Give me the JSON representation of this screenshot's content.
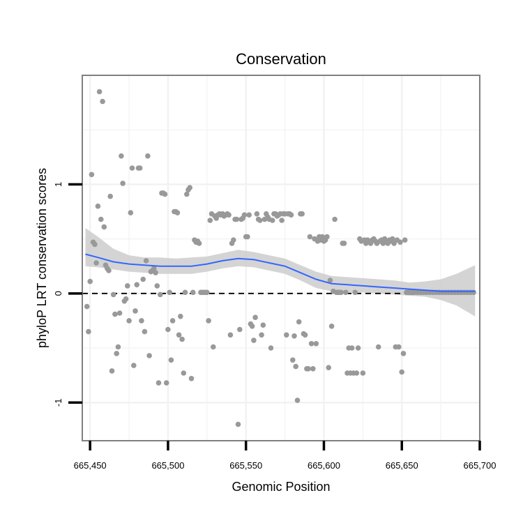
{
  "chart_data": {
    "type": "scatter",
    "title": "Conservation",
    "xlabel": "Genomic Position",
    "ylabel": "phyloP LRT conservation scores",
    "xlim": [
      665445,
      665700
    ],
    "ylim": [
      -1.35,
      2.0
    ],
    "x_ticks": [
      665450,
      665500,
      665550,
      665600,
      665650,
      665700
    ],
    "x_tick_labels": [
      "665,450",
      "665,500",
      "665,550",
      "665,600",
      "665,650",
      "665,700"
    ],
    "y_ticks": [
      -1,
      0,
      1
    ],
    "y_tick_labels": [
      "-1",
      "0",
      "1"
    ],
    "grid": true,
    "reference_line": {
      "y": 0,
      "style": "dashed"
    },
    "colors": {
      "points": "#999999",
      "smooth_line": "#3366ff",
      "ribbon": "#cccccc",
      "panel_border": "#808080",
      "grid": "#f2f2f2",
      "ref_line": "#000000"
    },
    "points": [
      [
        665448,
        -0.12
      ],
      [
        665449,
        -0.35
      ],
      [
        665450,
        0.11
      ],
      [
        665451,
        1.09
      ],
      [
        665452,
        0.47
      ],
      [
        665453,
        0.45
      ],
      [
        665454,
        0.28
      ],
      [
        665455,
        0.8
      ],
      [
        665456,
        1.85
      ],
      [
        665457,
        0.68
      ],
      [
        665458,
        1.76
      ],
      [
        665459,
        0.61
      ],
      [
        665460,
        0.26
      ],
      [
        665461,
        0.23
      ],
      [
        665462,
        0.21
      ],
      [
        665463,
        0.89
      ],
      [
        665464,
        -0.71
      ],
      [
        665465,
        -0.01
      ],
      [
        665466,
        -0.19
      ],
      [
        665467,
        -0.55
      ],
      [
        665468,
        -0.49
      ],
      [
        665469,
        -0.18
      ],
      [
        665470,
        1.26
      ],
      [
        665471,
        1.01
      ],
      [
        665472,
        -0.07
      ],
      [
        665473,
        -0.05
      ],
      [
        665474,
        0.07
      ],
      [
        665475,
        -0.25
      ],
      [
        665476,
        0.74
      ],
      [
        665477,
        1.15
      ],
      [
        665478,
        -0.66
      ],
      [
        665479,
        -0.16
      ],
      [
        665480,
        0.08
      ],
      [
        665481,
        1.15
      ],
      [
        665482,
        1.15
      ],
      [
        665483,
        -0.25
      ],
      [
        665484,
        0.13
      ],
      [
        665485,
        -0.35
      ],
      [
        665486,
        0.3
      ],
      [
        665487,
        1.26
      ],
      [
        665488,
        -0.57
      ],
      [
        665489,
        0.2
      ],
      [
        665490,
        0.21
      ],
      [
        665491,
        0.23
      ],
      [
        665492,
        0.19
      ],
      [
        665493,
        0.07
      ],
      [
        665494,
        -0.82
      ],
      [
        665495,
        -0.01
      ],
      [
        665496,
        0.92
      ],
      [
        665497,
        0.92
      ],
      [
        665498,
        0.91
      ],
      [
        665499,
        -0.82
      ],
      [
        665500,
        -0.33
      ],
      [
        665501,
        0.01
      ],
      [
        665502,
        -0.61
      ],
      [
        665503,
        -0.25
      ],
      [
        665504,
        0.75
      ],
      [
        665505,
        0.75
      ],
      [
        665506,
        0.74
      ],
      [
        665507,
        -0.38
      ],
      [
        665508,
        -0.21
      ],
      [
        665509,
        -0.42
      ],
      [
        665510,
        -0.73
      ],
      [
        665511,
        0.01
      ],
      [
        665512,
        0.91
      ],
      [
        665513,
        0.95
      ],
      [
        665514,
        0.97
      ],
      [
        665515,
        -0.78
      ],
      [
        665516,
        0.01
      ],
      [
        665517,
        0.49
      ],
      [
        665518,
        0.47
      ],
      [
        665519,
        0.48
      ],
      [
        665520,
        0.46
      ],
      [
        665521,
        0.01
      ],
      [
        665522,
        0.01
      ],
      [
        665523,
        0.01
      ],
      [
        665524,
        0.01
      ],
      [
        665525,
        0.01
      ],
      [
        665526,
        -0.25
      ],
      [
        665527,
        0.67
      ],
      [
        665528,
        0.73
      ],
      [
        665529,
        -0.49
      ],
      [
        665530,
        0.71
      ],
      [
        665531,
        0.69
      ],
      [
        665532,
        0.72
      ],
      [
        665533,
        0.73
      ],
      [
        665534,
        0.72
      ],
      [
        665535,
        0.73
      ],
      [
        665536,
        0.71
      ],
      [
        665537,
        0.72
      ],
      [
        665538,
        0.73
      ],
      [
        665539,
        0.72
      ],
      [
        665540,
        -0.38
      ],
      [
        665541,
        0.46
      ],
      [
        665542,
        0.49
      ],
      [
        665543,
        0.68
      ],
      [
        665544,
        0.68
      ],
      [
        665545,
        -1.2
      ],
      [
        665546,
        -0.33
      ],
      [
        665547,
        0.68
      ],
      [
        665548,
        0.69
      ],
      [
        665549,
        0.72
      ],
      [
        665550,
        0.52
      ],
      [
        665551,
        0.52
      ],
      [
        665552,
        0.72
      ],
      [
        665553,
        -0.28
      ],
      [
        665554,
        -0.3
      ],
      [
        665555,
        -0.43
      ],
      [
        665556,
        -0.22
      ],
      [
        665557,
        0.73
      ],
      [
        665558,
        0.68
      ],
      [
        665559,
        0.67
      ],
      [
        665560,
        -0.38
      ],
      [
        665561,
        -0.29
      ],
      [
        665562,
        0.68
      ],
      [
        665563,
        0.73
      ],
      [
        665564,
        0.7
      ],
      [
        665565,
        0.68
      ],
      [
        665566,
        -0.5
      ],
      [
        665567,
        0.67
      ],
      [
        665568,
        0.73
      ],
      [
        665569,
        0.73
      ],
      [
        665570,
        0.71
      ],
      [
        665571,
        0.72
      ],
      [
        665572,
        0.73
      ],
      [
        665573,
        0.67
      ],
      [
        665574,
        0.73
      ],
      [
        665575,
        0.73
      ],
      [
        665576,
        -0.38
      ],
      [
        665577,
        0.73
      ],
      [
        665578,
        0.73
      ],
      [
        665579,
        0.72
      ],
      [
        665580,
        -0.61
      ],
      [
        665581,
        -0.39
      ],
      [
        665582,
        -0.67
      ],
      [
        665583,
        -0.98
      ],
      [
        665584,
        -0.26
      ],
      [
        665585,
        0.73
      ],
      [
        665586,
        0.73
      ],
      [
        665587,
        -0.37
      ],
      [
        665588,
        -0.38
      ],
      [
        665589,
        -0.69
      ],
      [
        665590,
        -0.69
      ],
      [
        665591,
        0.52
      ],
      [
        665592,
        -0.46
      ],
      [
        665593,
        -0.69
      ],
      [
        665594,
        0.5
      ],
      [
        665595,
        -0.46
      ],
      [
        665596,
        0.48
      ],
      [
        665597,
        0.52
      ],
      [
        665598,
        0.49
      ],
      [
        665599,
        0.52
      ],
      [
        665600,
        0.48
      ],
      [
        665601,
        0.49
      ],
      [
        665602,
        0.52
      ],
      [
        665603,
        -0.68
      ],
      [
        665604,
        0.12
      ],
      [
        665605,
        -0.3
      ],
      [
        665606,
        0.02
      ],
      [
        665607,
        0.68
      ],
      [
        665608,
        0.01
      ],
      [
        665609,
        0.01
      ],
      [
        665610,
        0.01
      ],
      [
        665611,
        0.01
      ],
      [
        665612,
        0.46
      ],
      [
        665613,
        0.46
      ],
      [
        665614,
        0.01
      ],
      [
        665615,
        -0.73
      ],
      [
        665616,
        -0.5
      ],
      [
        665617,
        -0.73
      ],
      [
        665618,
        -0.5
      ],
      [
        665619,
        -0.73
      ],
      [
        665620,
        0.01
      ],
      [
        665621,
        -0.73
      ],
      [
        665622,
        -0.5
      ],
      [
        665623,
        0.5
      ],
      [
        665624,
        0.48
      ],
      [
        665625,
        -0.73
      ],
      [
        665626,
        0.49
      ],
      [
        665627,
        0.46
      ],
      [
        665628,
        0.49
      ],
      [
        665629,
        0.48
      ],
      [
        665630,
        0.46
      ],
      [
        665631,
        0.49
      ],
      [
        665632,
        0.5
      ],
      [
        665633,
        0.48
      ],
      [
        665634,
        0.46
      ],
      [
        665635,
        -0.49
      ],
      [
        665636,
        0.48
      ],
      [
        665637,
        0.49
      ],
      [
        665638,
        0.46
      ],
      [
        665639,
        0.5
      ],
      [
        665640,
        0.48
      ],
      [
        665641,
        0.46
      ],
      [
        665642,
        0.49
      ],
      [
        665643,
        0.48
      ],
      [
        665644,
        0.5
      ],
      [
        665645,
        0.46
      ],
      [
        665646,
        -0.49
      ],
      [
        665647,
        0.49
      ],
      [
        665648,
        -0.49
      ],
      [
        665649,
        0.47
      ],
      [
        665650,
        -0.72
      ],
      [
        665651,
        -0.55
      ],
      [
        665652,
        0.49
      ],
      [
        665653,
        0.01
      ],
      [
        665654,
        0.01
      ],
      [
        665655,
        0.01
      ],
      [
        665656,
        0.01
      ],
      [
        665657,
        0.01
      ],
      [
        665658,
        0.01
      ],
      [
        665660,
        0.01
      ],
      [
        665662,
        0.01
      ],
      [
        665664,
        0.01
      ],
      [
        665666,
        0.01
      ],
      [
        665668,
        0.01
      ],
      [
        665670,
        0.01
      ],
      [
        665672,
        0.01
      ],
      [
        665674,
        0.01
      ],
      [
        665676,
        0.01
      ],
      [
        665678,
        0.01
      ],
      [
        665680,
        0.01
      ],
      [
        665682,
        0.01
      ],
      [
        665684,
        0.01
      ],
      [
        665686,
        0.01
      ],
      [
        665688,
        0.01
      ],
      [
        665690,
        0.01
      ],
      [
        665692,
        0.01
      ],
      [
        665694,
        0.01
      ],
      [
        665696,
        0.01
      ]
    ],
    "smooth": {
      "x": [
        665447,
        665455,
        665465,
        665475,
        665485,
        665495,
        665505,
        665515,
        665525,
        665535,
        665545,
        665555,
        665565,
        665575,
        665585,
        665595,
        665605,
        665615,
        665625,
        665635,
        665645,
        665655,
        665665,
        665675,
        665685,
        665697
      ],
      "y": [
        0.36,
        0.33,
        0.29,
        0.27,
        0.26,
        0.25,
        0.25,
        0.25,
        0.27,
        0.3,
        0.32,
        0.31,
        0.28,
        0.25,
        0.19,
        0.13,
        0.09,
        0.08,
        0.07,
        0.06,
        0.05,
        0.04,
        0.03,
        0.02,
        0.02,
        0.02
      ],
      "lower": [
        0.25,
        0.24,
        0.22,
        0.2,
        0.19,
        0.18,
        0.18,
        0.18,
        0.2,
        0.23,
        0.25,
        0.24,
        0.21,
        0.18,
        0.12,
        0.05,
        0.02,
        0.01,
        0.01,
        0.0,
        -0.01,
        -0.02,
        -0.03,
        -0.06,
        -0.11,
        -0.21
      ],
      "upper": [
        0.6,
        0.52,
        0.41,
        0.35,
        0.33,
        0.33,
        0.32,
        0.33,
        0.34,
        0.37,
        0.4,
        0.38,
        0.35,
        0.32,
        0.26,
        0.2,
        0.16,
        0.15,
        0.14,
        0.13,
        0.12,
        0.1,
        0.11,
        0.13,
        0.18,
        0.26
      ]
    }
  }
}
